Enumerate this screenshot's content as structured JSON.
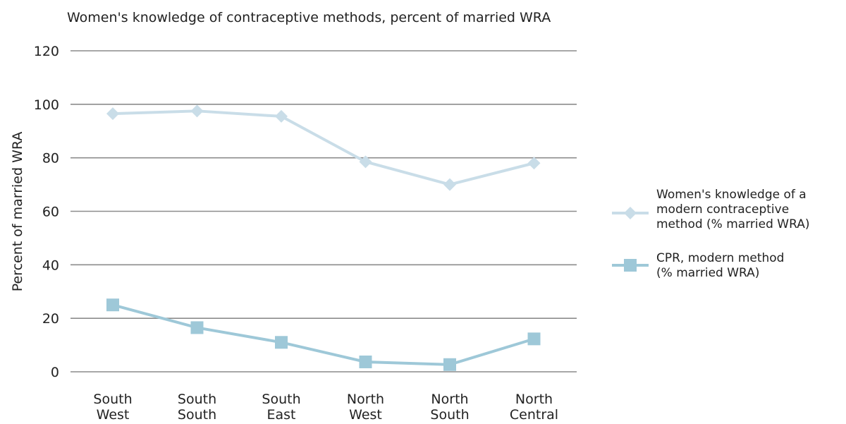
{
  "chart_data": {
    "type": "line",
    "title": "Women's knowledge of contraceptive methods, percent of married WRA",
    "ylabel": "Percent of married WRA",
    "xlabel": "",
    "ylim": [
      0,
      120
    ],
    "yticks": [
      0,
      20,
      40,
      60,
      80,
      100,
      120
    ],
    "grid": true,
    "legend_position": "right",
    "categories": [
      [
        "South",
        "West"
      ],
      [
        "South",
        "South"
      ],
      [
        "South",
        "East"
      ],
      [
        "North",
        "West"
      ],
      [
        "North",
        "South"
      ],
      [
        "North",
        "Central"
      ]
    ],
    "series": [
      {
        "name": [
          "Women's knowledge of a",
          "modern contraceptive",
          "method (% married WRA)"
        ],
        "marker": "diamond",
        "color": "#c9dde8",
        "values": [
          96.5,
          97.5,
          95.5,
          78.5,
          70.0,
          78.0
        ]
      },
      {
        "name": [
          "CPR, modern method",
          "(% married WRA)"
        ],
        "marker": "square",
        "color": "#9ec8d8",
        "values": [
          25.0,
          16.5,
          11.0,
          3.7,
          2.7,
          12.3
        ]
      }
    ]
  }
}
